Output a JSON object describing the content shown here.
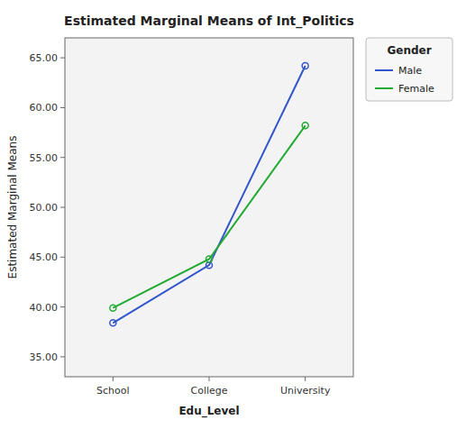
{
  "chart_data": {
    "type": "line",
    "title": "Estimated Marginal Means of Int_Politics",
    "x_label": "Edu_Level",
    "y_label": "Estimated Marginal Means",
    "categories": [
      "School",
      "College",
      "University"
    ],
    "series": [
      {
        "name": "Male",
        "color": "#3355cc",
        "marker": "circle",
        "values": [
          38.4,
          44.2,
          64.2
        ]
      },
      {
        "name": "Female",
        "color": "#22aa33",
        "marker": "circle",
        "values": [
          39.9,
          44.8,
          58.2
        ]
      }
    ],
    "ylim": [
      33.0,
      67.0
    ],
    "yticks": [
      {
        "value": 35,
        "label": "35.00"
      },
      {
        "value": 40,
        "label": "40.00"
      },
      {
        "value": 45,
        "label": "45.00"
      },
      {
        "value": 50,
        "label": "50.00"
      },
      {
        "value": 55,
        "label": "55.00"
      },
      {
        "value": 60,
        "label": "60.00"
      },
      {
        "value": 65,
        "label": "65.00"
      }
    ],
    "legend_title": "Gender",
    "legend": "right",
    "grid": false
  }
}
